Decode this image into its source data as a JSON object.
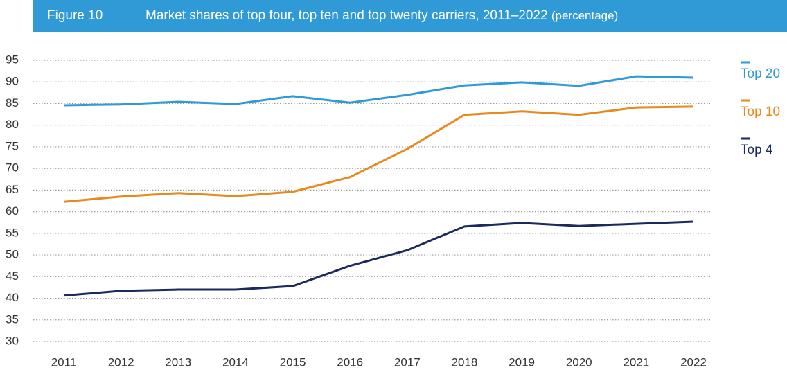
{
  "chart_data": {
    "type": "line",
    "figure_label": "Figure 10",
    "title": "Market shares of top four, top ten and top twenty carriers, 2011–2022",
    "subtitle": "(percentage)",
    "categories": [
      "2011",
      "2012",
      "2013",
      "2014",
      "2015",
      "2016",
      "2017",
      "2018",
      "2019",
      "2020",
      "2021",
      "2022"
    ],
    "series": [
      {
        "name": "Top 20",
        "color": "#2f9ad6",
        "values": [
          84.6,
          84.8,
          85.4,
          84.9,
          86.7,
          85.2,
          87,
          89.2,
          89.9,
          89.1,
          91.3,
          91
        ]
      },
      {
        "name": "Top 10",
        "color": "#e8891e",
        "values": [
          62.3,
          63.5,
          64.3,
          63.6,
          64.6,
          68,
          74.5,
          82.4,
          83.2,
          82.4,
          84.1,
          84.3
        ]
      },
      {
        "name": "Top 4",
        "color": "#1b2a5c",
        "values": [
          40.6,
          41.7,
          42,
          42,
          42.8,
          47.5,
          51.1,
          56.6,
          57.4,
          56.7,
          57.2,
          57.7
        ]
      }
    ],
    "ylim": [
      30,
      95
    ],
    "yticks": [
      30,
      35,
      40,
      45,
      50,
      55,
      60,
      65,
      70,
      75,
      80,
      85,
      90,
      95
    ],
    "grid": true,
    "legend": "right"
  }
}
